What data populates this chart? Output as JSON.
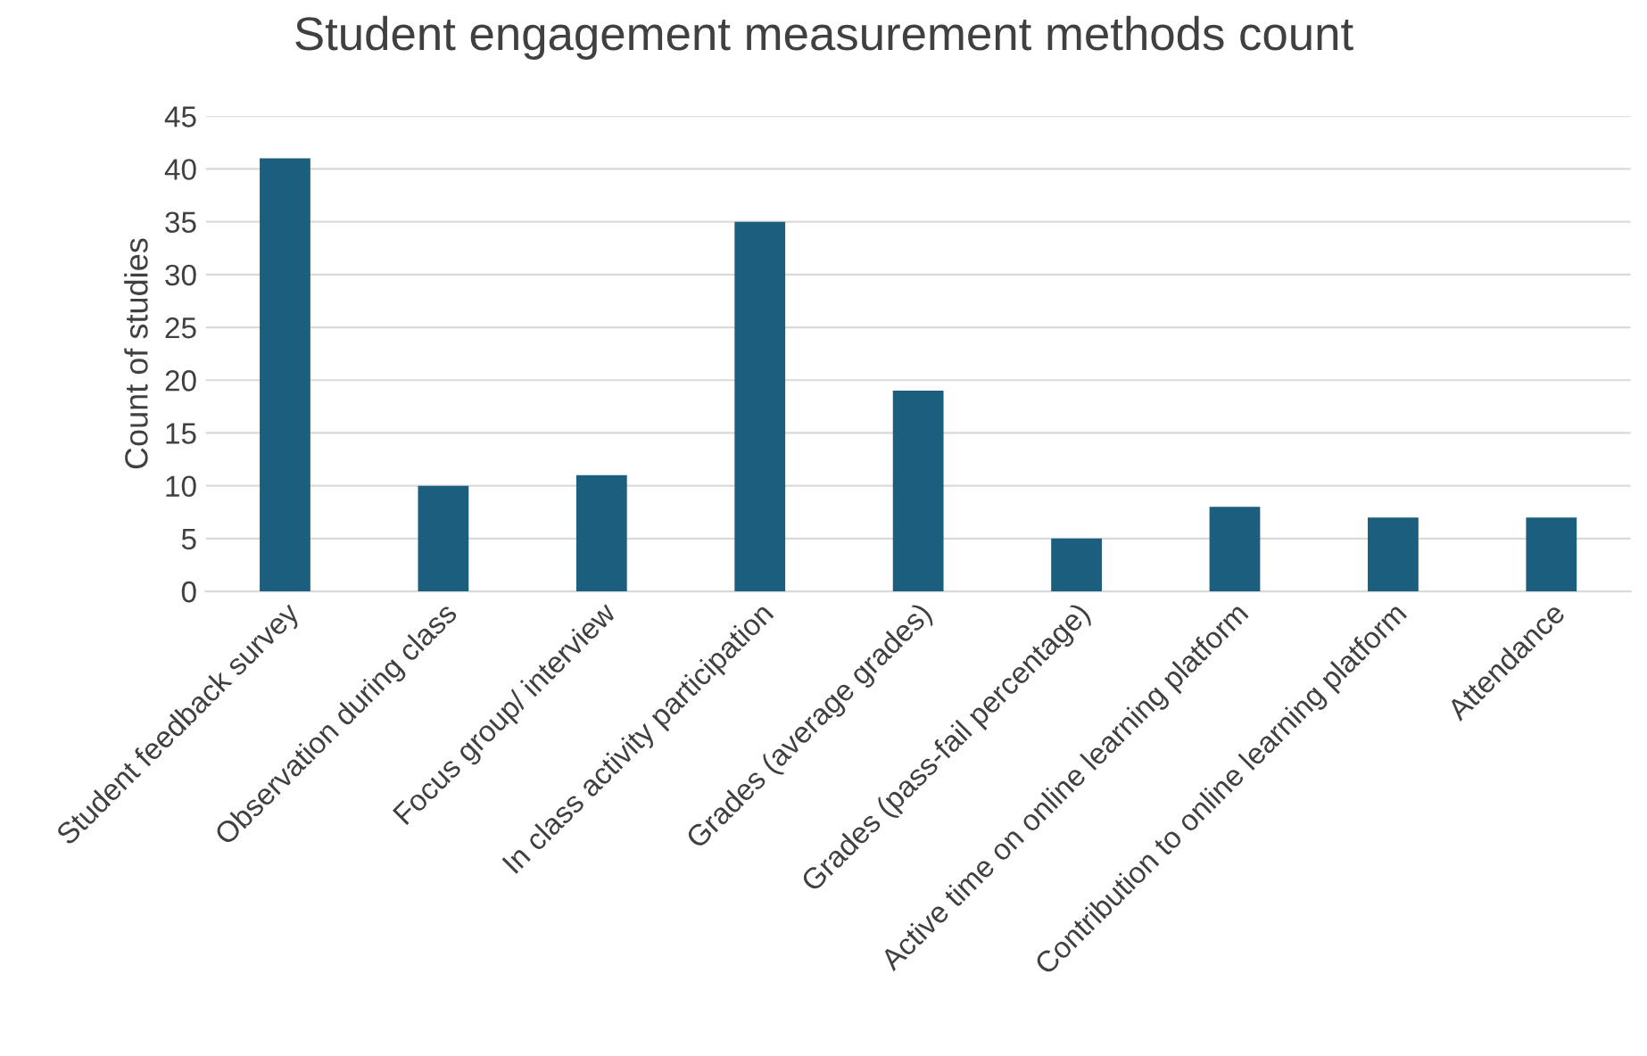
{
  "chart_data": {
    "type": "bar",
    "title": "Student engagement measurement methods count",
    "ylabel": "Count of studies",
    "categories": [
      "Student feedback survey",
      "Observation during class",
      "Focus group/ interview",
      "In class activity participation",
      "Grades (average grades)",
      "Grades (pass-fail percentage)",
      "Active time on online learning platform",
      "Contribution to online learning platform",
      "Attendance"
    ],
    "values": [
      41,
      10,
      11,
      35,
      19,
      5,
      8,
      7,
      7
    ],
    "color": "#1b5e7d",
    "ylim": [
      0,
      45
    ],
    "yticks": [
      0,
      5,
      10,
      15,
      20,
      25,
      30,
      35,
      40,
      45
    ],
    "grid": "y",
    "legend": false
  }
}
